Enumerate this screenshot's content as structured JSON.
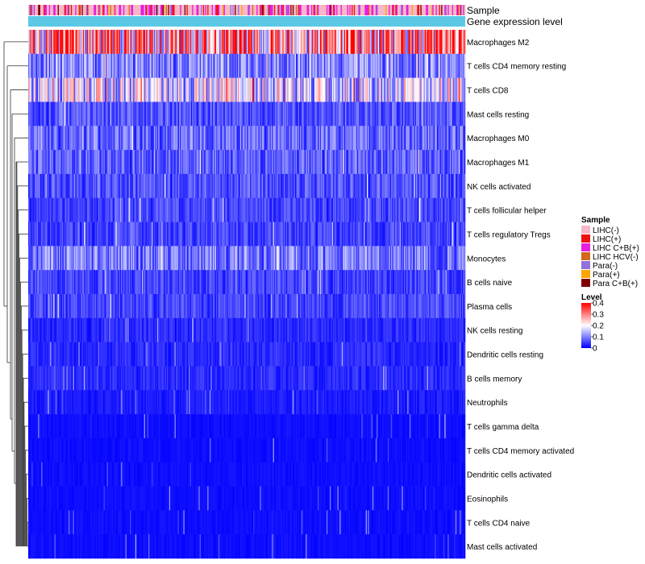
{
  "chart_data": {
    "type": "heatmap",
    "title": "",
    "annotation_tracks": [
      "Sample",
      "Gene expression level"
    ],
    "rows": [
      "Macrophages M2",
      "T cells CD4 memory resting",
      "T cells CD8",
      "Mast cells resting",
      "Macrophages M0",
      "Macrophages M1",
      "NK cells activated",
      "T cells follicular helper",
      "T cells regulatory  Tregs",
      "Monocytes",
      "B cells naive",
      "Plasma cells",
      "NK cells resting",
      "Dendritic cells resting",
      "B cells memory",
      "Neutrophils",
      "T cells gamma delta",
      "T cells CD4 memory activated",
      "Dendritic cells activated",
      "Eosinophils",
      "T cells CD4 naive",
      "Mast cells activated"
    ],
    "row_mean_levels": [
      0.28,
      0.1,
      0.17,
      0.06,
      0.08,
      0.07,
      0.06,
      0.05,
      0.05,
      0.09,
      0.05,
      0.05,
      0.03,
      0.03,
      0.03,
      0.02,
      0.01,
      0.01,
      0.01,
      0.01,
      0.01,
      0.01
    ],
    "n_samples": 400,
    "sample_legend": {
      "title": "Sample",
      "items": [
        {
          "label": "LIHC(-)",
          "color": "#f7b7c6"
        },
        {
          "label": "LIHC(+)",
          "color": "#ee1111"
        },
        {
          "label": "LIHC C+B(+)",
          "color": "#e81ee0"
        },
        {
          "label": "LIHC HCV(-)",
          "color": "#d2691e"
        },
        {
          "label": "Para(-)",
          "color": "#9370db"
        },
        {
          "label": "Para(+)",
          "color": "#ffa500"
        },
        {
          "label": "Para C+B(+)",
          "color": "#800000"
        }
      ]
    },
    "level_legend": {
      "title": "Level",
      "ticks": [
        "0.4",
        "0.3",
        "0.2",
        "0.1",
        "0"
      ],
      "tick_values": [
        0.4,
        0.3,
        0.2,
        0.1,
        0
      ],
      "range": [
        0,
        0.4
      ],
      "colors": [
        "#0000ff",
        "#ffffff",
        "#ff0000"
      ]
    },
    "expression_level_color": "#5bc8e6"
  }
}
